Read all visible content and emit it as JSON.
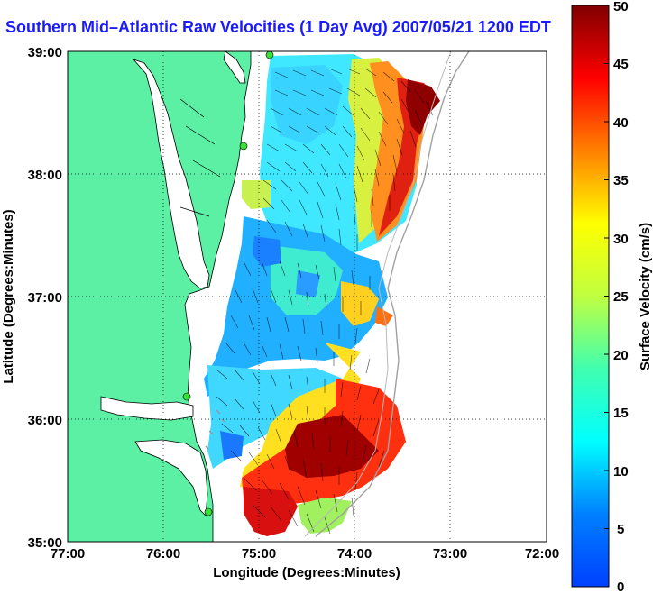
{
  "title": "Southern Mid–Atlantic Raw Velocities (1 Day Avg) 2007/05/21 1200 EDT",
  "map": {
    "xlabel": "Longitude (Degrees:Minutes)",
    "ylabel": "Latitude (Degrees:Minutes)",
    "x_ticks": [
      "77:00",
      "76:00",
      "75:00",
      "74:00",
      "73:00",
      "72:00"
    ],
    "y_ticks": [
      "39:00",
      "38:00",
      "37:00",
      "36:00",
      "35:00"
    ],
    "lon_range": [
      -77,
      -72
    ],
    "lat_range": [
      35,
      39
    ],
    "grid": "dotted",
    "colors": {
      "land": "#5cf0a4",
      "ocean": "#ffffff",
      "arrows": "#000000",
      "stations": "#38e038"
    }
  },
  "colorbar": {
    "label": "Surface Velocity (cm/s)",
    "ticks": [
      "50",
      "45",
      "40",
      "35",
      "30",
      "25",
      "20",
      "15",
      "10",
      "5",
      "0"
    ],
    "range": [
      0,
      50
    ],
    "colormap": "jet"
  }
}
